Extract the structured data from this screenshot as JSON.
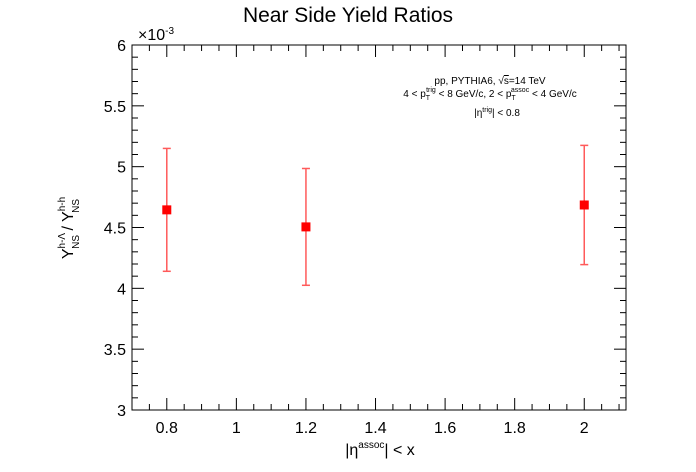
{
  "chart_data": {
    "type": "scatter",
    "title": "Near Side Yield Ratios",
    "xlabel": {
      "base": "|η",
      "sup": "assoc",
      "tail": "| < x"
    },
    "ylabel": {
      "num_base": "Y",
      "num_sup": "h-Λ",
      "num_sub": "NS",
      "sep": " / ",
      "den_base": "Y",
      "den_sup": "h-h",
      "den_sub": "NS"
    },
    "y_exponent_label": "×10",
    "y_exponent_power": "-3",
    "xlim": [
      0.7,
      2.12
    ],
    "ylim": [
      3.0,
      6.0
    ],
    "x_ticks": [
      "0.8",
      "1",
      "1.2",
      "1.4",
      "1.6",
      "1.8",
      "2"
    ],
    "y_ticks": [
      "3",
      "3.5",
      "4",
      "4.5",
      "5",
      "5.5",
      "6"
    ],
    "marker_color": "#ff0000",
    "errorbar_color": "#ff5a5a",
    "series": [
      {
        "x": [
          0.8,
          1.2,
          2.0
        ],
        "y": [
          4.645,
          4.505,
          4.685
        ],
        "err": [
          0.505,
          0.48,
          0.49
        ]
      }
    ],
    "annotation": {
      "line1": {
        "text": "pp, PYTHIA6, ",
        "sqrt": "√",
        "over": "s",
        "tail": "=14 TeV"
      },
      "line2": {
        "a": "4 < p",
        "a_sub": "T",
        "a_sup": "trig",
        "b": " < 8 GeV/c, 2 < p",
        "b_sub": "T",
        "b_sup": "assoc",
        "c": " < 4 GeV/c"
      },
      "line3": {
        "a": "|η",
        "a_sup": "trig",
        "b": "| < 0.8"
      }
    }
  }
}
